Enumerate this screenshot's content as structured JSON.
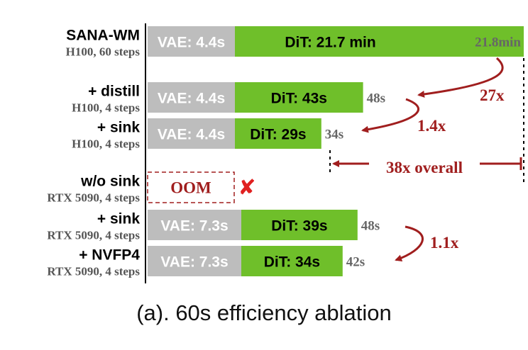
{
  "chart_data": {
    "type": "bar",
    "stacked": true,
    "orientation": "horizontal",
    "title": "",
    "caption": "(a). 60s efficiency ablation",
    "colors": {
      "vae": "#bdbdbd",
      "dit": "#6fbf2a",
      "annotation": "#a01e1e",
      "total_text": "#666666"
    },
    "rows": [
      {
        "name": "SANA-WM",
        "sub": "H100, 60 steps",
        "vae": 4.4,
        "dit": 1302,
        "vae_label": "VAE: 4.4s",
        "dit_label": "DiT: 21.7 min",
        "total_label": "21.8min",
        "total_inside": true
      },
      {
        "name": "+ distill",
        "sub": "H100, 4 steps",
        "vae": 4.4,
        "dit": 43,
        "vae_label": "VAE: 4.4s",
        "dit_label": "DiT: 43s",
        "total_label": "48s"
      },
      {
        "name": "+ sink",
        "sub": "H100, 4 steps",
        "vae": 4.4,
        "dit": 29,
        "vae_label": "VAE: 4.4s",
        "dit_label": "DiT: 29s",
        "total_label": "34s"
      },
      {
        "name": "w/o sink",
        "sub": "RTX 5090, 4 steps",
        "oom": true,
        "oom_label": "OOM",
        "fail_mark": "✘"
      },
      {
        "name": "+ sink",
        "sub": "RTX 5090, 4 steps",
        "vae": 7.3,
        "dit": 39,
        "vae_label": "VAE: 7.3s",
        "dit_label": "DiT: 39s",
        "total_label": "48s"
      },
      {
        "name": "+ NVFP4",
        "sub": "RTX 5090, 4 steps",
        "vae": 7.3,
        "dit": 34,
        "vae_label": "VAE: 7.3s",
        "dit_label": "DiT: 34s",
        "total_label": "42s"
      }
    ],
    "annotations": [
      {
        "text": "27x",
        "from_row": 0,
        "to_row": 1
      },
      {
        "text": "1.4x",
        "from_row": 1,
        "to_row": 2
      },
      {
        "text": "38x overall",
        "from_row": 0,
        "to_row": 2
      },
      {
        "text": "1.1x",
        "from_row": 4,
        "to_row": 5
      }
    ]
  }
}
